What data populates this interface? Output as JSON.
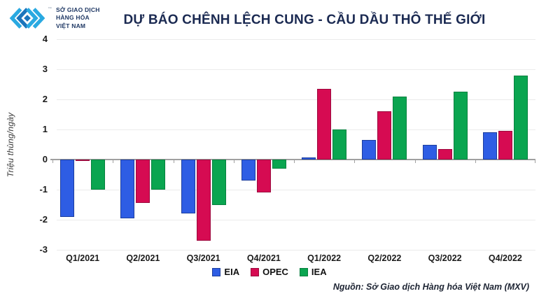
{
  "header": {
    "logo_lines": [
      "SỞ GIAO DỊCH",
      "HÀNG HÓA",
      "VIỆT NAM"
    ],
    "trademark": "™"
  },
  "chart_data": {
    "type": "bar",
    "title": "DỰ BÁO CHÊNH LỆCH CUNG - CẦU DẦU THÔ THẾ GIỚI",
    "xlabel": "",
    "ylabel": "Triệu thùng/ngày",
    "categories": [
      "Q1/2021",
      "Q2/2021",
      "Q3/2021",
      "Q4/2021",
      "Q1/2022",
      "Q2/2022",
      "Q3/2022",
      "Q4/2022"
    ],
    "series": [
      {
        "name": "EIA",
        "color": "#2e5de4",
        "border": "#1c3e9e",
        "values": [
          -1.9,
          -1.95,
          -1.8,
          -0.7,
          0.07,
          0.65,
          0.5,
          0.9
        ]
      },
      {
        "name": "OPEC",
        "color": "#d60b52",
        "border": "#9c0a3e",
        "values": [
          -0.05,
          -1.45,
          -2.7,
          -1.1,
          2.35,
          1.6,
          0.35,
          0.95
        ]
      },
      {
        "name": "IEA",
        "color": "#0aa550",
        "border": "#07813f",
        "values": [
          -1.0,
          -1.0,
          -1.5,
          -0.3,
          1.0,
          2.1,
          2.25,
          2.8
        ]
      }
    ],
    "ylim": [
      -3,
      4
    ],
    "yticks": [
      4,
      3,
      2,
      1,
      0,
      -1,
      -2,
      -3
    ],
    "grid": true,
    "legend_position": "bottom"
  },
  "footer": {
    "source": "Nguồn: Sở Giao dịch Hàng hóa Việt Nam (MXV)"
  },
  "colors": {
    "title_navy": "#1b2a52",
    "logo_blue_light": "#29a9e1",
    "logo_blue_dark": "#1b75bc",
    "axis_gray": "#a0a0a0",
    "gridline_gray": "#ebebeb"
  }
}
